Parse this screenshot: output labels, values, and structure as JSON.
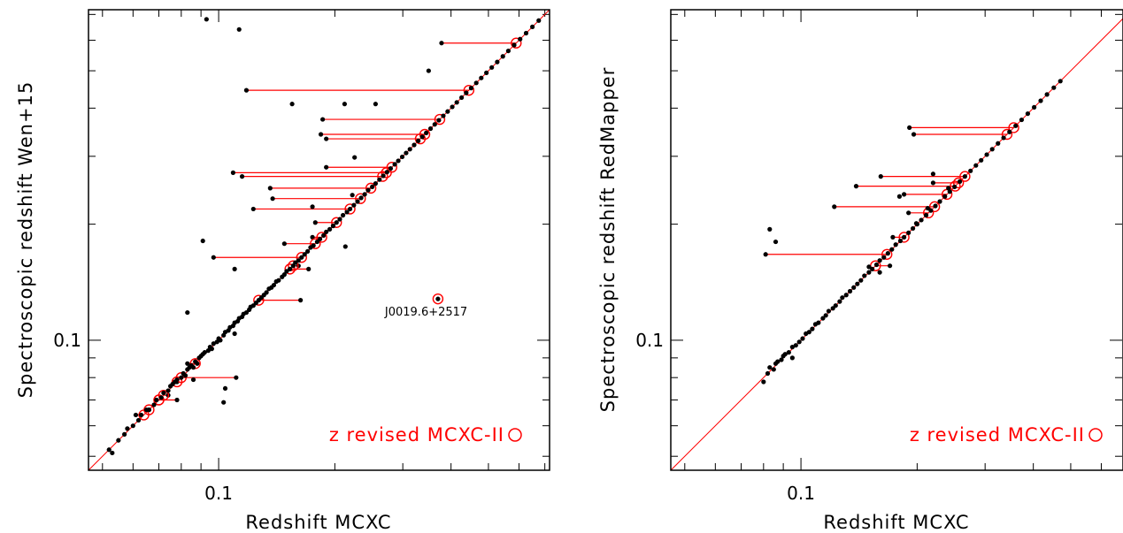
{
  "chart_data": [
    {
      "type": "scatter",
      "xlabel": "Redshift MCXC",
      "ylabel": "Spectroscopic redshift Wen+15",
      "xscale": "log",
      "yscale": "log",
      "xlim": [
        0.046,
        0.72
      ],
      "ylim": [
        0.046,
        0.72
      ],
      "xtick_labels": [
        {
          "value": 0.1,
          "label": "0.1"
        }
      ],
      "ytick_labels": [
        {
          "value": 0.1,
          "label": "0.1"
        }
      ],
      "one_to_one_line": true,
      "legend": {
        "label": "z revised MCXC-II",
        "placement": "bottom-right",
        "color": "#ff0000",
        "marker": "open-circle"
      },
      "annotations": [
        {
          "text": "J0019.6+2517",
          "x": 0.37,
          "y": 0.128
        }
      ],
      "points": [
        [
          0.052,
          0.052
        ],
        [
          0.053,
          0.051
        ],
        [
          0.055,
          0.055
        ],
        [
          0.057,
          0.057
        ],
        [
          0.058,
          0.059
        ],
        [
          0.06,
          0.06
        ],
        [
          0.062,
          0.062
        ],
        [
          0.063,
          0.064
        ],
        [
          0.065,
          0.066
        ],
        [
          0.066,
          0.066
        ],
        [
          0.068,
          0.068
        ],
        [
          0.069,
          0.07
        ],
        [
          0.071,
          0.071
        ],
        [
          0.072,
          0.073
        ],
        [
          0.074,
          0.074
        ],
        [
          0.075,
          0.076
        ],
        [
          0.076,
          0.077
        ],
        [
          0.077,
          0.078
        ],
        [
          0.078,
          0.079
        ],
        [
          0.08,
          0.08
        ],
        [
          0.081,
          0.082
        ],
        [
          0.082,
          0.081
        ],
        [
          0.083,
          0.084
        ],
        [
          0.084,
          0.085
        ],
        [
          0.085,
          0.086
        ],
        [
          0.086,
          0.085
        ],
        [
          0.087,
          0.088
        ],
        [
          0.088,
          0.087
        ],
        [
          0.089,
          0.09
        ],
        [
          0.09,
          0.091
        ],
        [
          0.091,
          0.092
        ],
        [
          0.092,
          0.093
        ],
        [
          0.094,
          0.094
        ],
        [
          0.095,
          0.096
        ],
        [
          0.096,
          0.095
        ],
        [
          0.097,
          0.098
        ],
        [
          0.099,
          0.099
        ],
        [
          0.1,
          0.101
        ],
        [
          0.101,
          0.1
        ],
        [
          0.103,
          0.103
        ],
        [
          0.104,
          0.105
        ],
        [
          0.106,
          0.106
        ],
        [
          0.107,
          0.108
        ],
        [
          0.109,
          0.109
        ],
        [
          0.11,
          0.111
        ],
        [
          0.112,
          0.112
        ],
        [
          0.113,
          0.114
        ],
        [
          0.115,
          0.115
        ],
        [
          0.116,
          0.117
        ],
        [
          0.118,
          0.118
        ],
        [
          0.12,
          0.12
        ],
        [
          0.121,
          0.122
        ],
        [
          0.123,
          0.123
        ],
        [
          0.125,
          0.125
        ],
        [
          0.127,
          0.127
        ],
        [
          0.129,
          0.129
        ],
        [
          0.131,
          0.131
        ],
        [
          0.133,
          0.133
        ],
        [
          0.135,
          0.136
        ],
        [
          0.137,
          0.137
        ],
        [
          0.139,
          0.139
        ],
        [
          0.141,
          0.142
        ],
        [
          0.143,
          0.143
        ],
        [
          0.146,
          0.146
        ],
        [
          0.148,
          0.148
        ],
        [
          0.15,
          0.151
        ],
        [
          0.153,
          0.153
        ],
        [
          0.156,
          0.156
        ],
        [
          0.158,
          0.159
        ],
        [
          0.161,
          0.161
        ],
        [
          0.164,
          0.164
        ],
        [
          0.167,
          0.167
        ],
        [
          0.17,
          0.17
        ],
        [
          0.173,
          0.174
        ],
        [
          0.176,
          0.176
        ],
        [
          0.18,
          0.18
        ],
        [
          0.183,
          0.183
        ],
        [
          0.187,
          0.187
        ],
        [
          0.19,
          0.191
        ],
        [
          0.194,
          0.194
        ],
        [
          0.198,
          0.198
        ],
        [
          0.202,
          0.202
        ],
        [
          0.206,
          0.206
        ],
        [
          0.21,
          0.211
        ],
        [
          0.215,
          0.215
        ],
        [
          0.219,
          0.219
        ],
        [
          0.224,
          0.224
        ],
        [
          0.229,
          0.229
        ],
        [
          0.234,
          0.234
        ],
        [
          0.239,
          0.239
        ],
        [
          0.244,
          0.245
        ],
        [
          0.25,
          0.25
        ],
        [
          0.255,
          0.255
        ],
        [
          0.261,
          0.261
        ],
        [
          0.267,
          0.267
        ],
        [
          0.273,
          0.273
        ],
        [
          0.279,
          0.279
        ],
        [
          0.286,
          0.286
        ],
        [
          0.292,
          0.292
        ],
        [
          0.299,
          0.299
        ],
        [
          0.306,
          0.306
        ],
        [
          0.313,
          0.313
        ],
        [
          0.321,
          0.321
        ],
        [
          0.329,
          0.329
        ],
        [
          0.337,
          0.337
        ],
        [
          0.345,
          0.345
        ],
        [
          0.354,
          0.354
        ],
        [
          0.363,
          0.363
        ],
        [
          0.372,
          0.372
        ],
        [
          0.382,
          0.382
        ],
        [
          0.392,
          0.392
        ],
        [
          0.403,
          0.403
        ],
        [
          0.414,
          0.414
        ],
        [
          0.426,
          0.426
        ],
        [
          0.438,
          0.438
        ],
        [
          0.451,
          0.451
        ],
        [
          0.465,
          0.465
        ],
        [
          0.479,
          0.479
        ],
        [
          0.494,
          0.494
        ],
        [
          0.51,
          0.51
        ],
        [
          0.527,
          0.527
        ],
        [
          0.545,
          0.545
        ],
        [
          0.563,
          0.563
        ],
        [
          0.583,
          0.583
        ],
        [
          0.604,
          0.604
        ],
        [
          0.626,
          0.626
        ],
        [
          0.65,
          0.65
        ],
        [
          0.675,
          0.675
        ],
        [
          0.093,
          0.68
        ],
        [
          0.113,
          0.64
        ],
        [
          0.083,
          0.118
        ],
        [
          0.091,
          0.181
        ],
        [
          0.103,
          0.069
        ],
        [
          0.104,
          0.075
        ],
        [
          0.155,
          0.41
        ],
        [
          0.212,
          0.41
        ],
        [
          0.255,
          0.41
        ],
        [
          0.225,
          0.298
        ],
        [
          0.175,
          0.222
        ],
        [
          0.222,
          0.238
        ],
        [
          0.11,
          0.104
        ],
        [
          0.086,
          0.079
        ],
        [
          0.35,
          0.5
        ],
        [
          0.11,
          0.153
        ],
        [
          0.213,
          0.175
        ],
        [
          0.198,
          0.198
        ]
      ],
      "revised": [
        {
          "x_old": 0.378,
          "x_new": 0.59,
          "z": 0.59
        },
        {
          "x_old": 0.118,
          "x_new": 0.445,
          "z": 0.445
        },
        {
          "x_old": 0.184,
          "x_new": 0.342,
          "z": 0.342
        },
        {
          "x_old": 0.19,
          "x_new": 0.333,
          "z": 0.333
        },
        {
          "x_old": 0.109,
          "x_new": 0.272,
          "z": 0.272
        },
        {
          "x_old": 0.115,
          "x_new": 0.266,
          "z": 0.266
        },
        {
          "x_old": 0.136,
          "x_new": 0.248,
          "z": 0.248
        },
        {
          "x_old": 0.138,
          "x_new": 0.233,
          "z": 0.233
        },
        {
          "x_old": 0.123,
          "x_new": 0.219,
          "z": 0.219
        },
        {
          "x_old": 0.178,
          "x_new": 0.202,
          "z": 0.202
        },
        {
          "x_old": 0.175,
          "x_new": 0.185,
          "z": 0.185
        },
        {
          "x_old": 0.097,
          "x_new": 0.164,
          "z": 0.164
        },
        {
          "x_old": 0.161,
          "x_new": 0.156,
          "z": 0.156
        },
        {
          "x_old": 0.186,
          "x_new": 0.374,
          "z": 0.374
        },
        {
          "x_old": 0.19,
          "x_new": 0.281,
          "z": 0.281
        },
        {
          "x_old": 0.148,
          "x_new": 0.178,
          "z": 0.178
        },
        {
          "x_old": 0.171,
          "x_new": 0.153,
          "z": 0.153
        },
        {
          "x_old": 0.163,
          "x_new": 0.127,
          "z": 0.127
        },
        {
          "x_old": 0.078,
          "x_new": 0.078,
          "z": 0.078
        },
        {
          "x_old": 0.074,
          "x_new": 0.072,
          "z": 0.072
        },
        {
          "x_old": 0.069,
          "x_new": 0.07,
          "z": 0.07
        },
        {
          "x_old": 0.066,
          "x_new": 0.066,
          "z": 0.066
        },
        {
          "x_old": 0.061,
          "x_new": 0.064,
          "z": 0.064
        },
        {
          "x_old": 0.111,
          "x_new": 0.08,
          "z": 0.08
        },
        {
          "x_old": 0.078,
          "x_new": 0.07,
          "z": 0.07
        },
        {
          "x_old": 0.083,
          "x_new": 0.087,
          "z": 0.087
        },
        {
          "x_old": 0.37,
          "x_new": 0.37,
          "z": 0.128
        }
      ]
    },
    {
      "type": "scatter",
      "xlabel": "Redshift MCXC",
      "ylabel": "Spectroscopic redshift RedMapper",
      "xscale": "log",
      "yscale": "log",
      "xlim": [
        0.046,
        0.72
      ],
      "ylim": [
        0.046,
        0.72
      ],
      "xtick_labels": [
        {
          "value": 0.1,
          "label": "0.1"
        }
      ],
      "ytick_labels": [
        {
          "value": 0.1,
          "label": "0.1"
        }
      ],
      "one_to_one_line": true,
      "legend": {
        "label": "z revised MCXC-II",
        "placement": "bottom-right",
        "color": "#ff0000",
        "marker": "open-circle"
      },
      "points": [
        [
          0.08,
          0.078
        ],
        [
          0.082,
          0.082
        ],
        [
          0.083,
          0.085
        ],
        [
          0.085,
          0.084
        ],
        [
          0.086,
          0.087
        ],
        [
          0.087,
          0.088
        ],
        [
          0.089,
          0.089
        ],
        [
          0.09,
          0.091
        ],
        [
          0.091,
          0.092
        ],
        [
          0.093,
          0.093
        ],
        [
          0.095,
          0.096
        ],
        [
          0.097,
          0.097
        ],
        [
          0.099,
          0.099
        ],
        [
          0.101,
          0.101
        ],
        [
          0.103,
          0.104
        ],
        [
          0.105,
          0.105
        ],
        [
          0.107,
          0.107
        ],
        [
          0.109,
          0.11
        ],
        [
          0.111,
          0.111
        ],
        [
          0.114,
          0.114
        ],
        [
          0.116,
          0.116
        ],
        [
          0.118,
          0.119
        ],
        [
          0.121,
          0.121
        ],
        [
          0.123,
          0.123
        ],
        [
          0.126,
          0.126
        ],
        [
          0.128,
          0.129
        ],
        [
          0.131,
          0.131
        ],
        [
          0.134,
          0.134
        ],
        [
          0.137,
          0.137
        ],
        [
          0.14,
          0.14
        ],
        [
          0.143,
          0.143
        ],
        [
          0.146,
          0.147
        ],
        [
          0.15,
          0.15
        ],
        [
          0.153,
          0.153
        ],
        [
          0.157,
          0.157
        ],
        [
          0.16,
          0.161
        ],
        [
          0.164,
          0.164
        ],
        [
          0.168,
          0.168
        ],
        [
          0.172,
          0.172
        ],
        [
          0.176,
          0.177
        ],
        [
          0.181,
          0.181
        ],
        [
          0.185,
          0.185
        ],
        [
          0.19,
          0.19
        ],
        [
          0.195,
          0.195
        ],
        [
          0.2,
          0.2
        ],
        [
          0.205,
          0.205
        ],
        [
          0.211,
          0.211
        ],
        [
          0.217,
          0.217
        ],
        [
          0.223,
          0.223
        ],
        [
          0.229,
          0.229
        ],
        [
          0.236,
          0.236
        ],
        [
          0.243,
          0.243
        ],
        [
          0.25,
          0.25
        ],
        [
          0.258,
          0.258
        ],
        [
          0.266,
          0.266
        ],
        [
          0.275,
          0.275
        ],
        [
          0.284,
          0.284
        ],
        [
          0.293,
          0.293
        ],
        [
          0.303,
          0.303
        ],
        [
          0.313,
          0.313
        ],
        [
          0.324,
          0.324
        ],
        [
          0.335,
          0.335
        ],
        [
          0.347,
          0.347
        ],
        [
          0.36,
          0.36
        ],
        [
          0.373,
          0.373
        ],
        [
          0.387,
          0.387
        ],
        [
          0.402,
          0.402
        ],
        [
          0.418,
          0.418
        ],
        [
          0.434,
          0.434
        ],
        [
          0.452,
          0.452
        ],
        [
          0.47,
          0.47
        ],
        [
          0.083,
          0.194
        ],
        [
          0.086,
          0.18
        ],
        [
          0.095,
          0.09
        ],
        [
          0.16,
          0.15
        ],
        [
          0.18,
          0.236
        ],
        [
          0.213,
          0.22
        ],
        [
          0.241,
          0.248
        ],
        [
          0.199,
          0.201
        ],
        [
          0.22,
          0.27
        ],
        [
          0.15,
          0.155
        ]
      ],
      "revised": [
        {
          "x_old": 0.191,
          "x_new": 0.356,
          "z": 0.356
        },
        {
          "x_old": 0.196,
          "x_new": 0.342,
          "z": 0.342
        },
        {
          "x_old": 0.161,
          "x_new": 0.266,
          "z": 0.266
        },
        {
          "x_old": 0.139,
          "x_new": 0.251,
          "z": 0.251
        },
        {
          "x_old": 0.122,
          "x_new": 0.222,
          "z": 0.222
        },
        {
          "x_old": 0.081,
          "x_new": 0.167,
          "z": 0.167
        },
        {
          "x_old": 0.173,
          "x_new": 0.185,
          "z": 0.185
        },
        {
          "x_old": 0.17,
          "x_new": 0.156,
          "z": 0.156
        },
        {
          "x_old": 0.22,
          "x_new": 0.256,
          "z": 0.256
        },
        {
          "x_old": 0.19,
          "x_new": 0.214,
          "z": 0.214
        },
        {
          "x_old": 0.185,
          "x_new": 0.239,
          "z": 0.239
        }
      ]
    }
  ]
}
